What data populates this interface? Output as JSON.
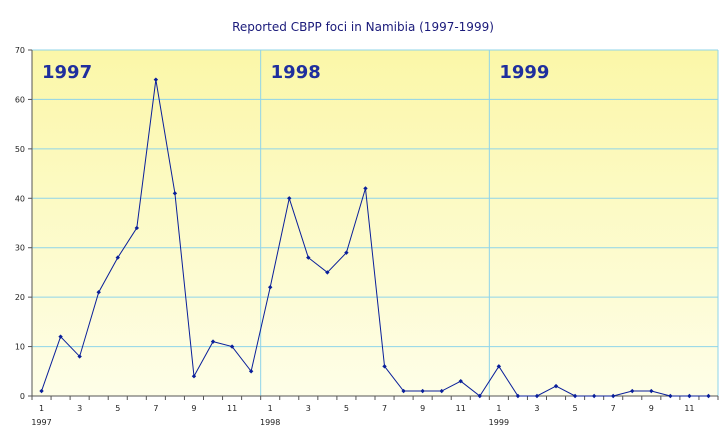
{
  "chart_data": {
    "type": "line",
    "title": "Reported CBPP foci in Namibia (1997-1999)",
    "xlabel": "",
    "ylabel": "",
    "ylim": [
      0,
      70
    ],
    "yticks": [
      0,
      10,
      20,
      30,
      40,
      50,
      60,
      70
    ],
    "grid": true,
    "colors": {
      "line": "#0a1f9a",
      "grid": "#8fd4ea",
      "background_top": "#fbf7a8",
      "background_bottom": "#fefee8",
      "title": "#1a1a7a",
      "year_label": "#1f2f9e"
    },
    "x_month_tick_labels": [
      "1",
      "3",
      "5",
      "7",
      "9",
      "11",
      "1",
      "3",
      "5",
      "7",
      "9",
      "11",
      "1",
      "3",
      "5",
      "7",
      "9",
      "11"
    ],
    "x_year_tick_labels": [
      "1997",
      "1998",
      "1999"
    ],
    "year_labels": [
      "1997",
      "1998",
      "1999"
    ],
    "series": [
      {
        "values": [
          1,
          12,
          8,
          21,
          28,
          34,
          64,
          41,
          4,
          11,
          10,
          5,
          22,
          40,
          28,
          25,
          29,
          42,
          6,
          1,
          1,
          1,
          3,
          0,
          6,
          0,
          0,
          2,
          0,
          0,
          0,
          1,
          1,
          0,
          0,
          0
        ]
      }
    ]
  }
}
